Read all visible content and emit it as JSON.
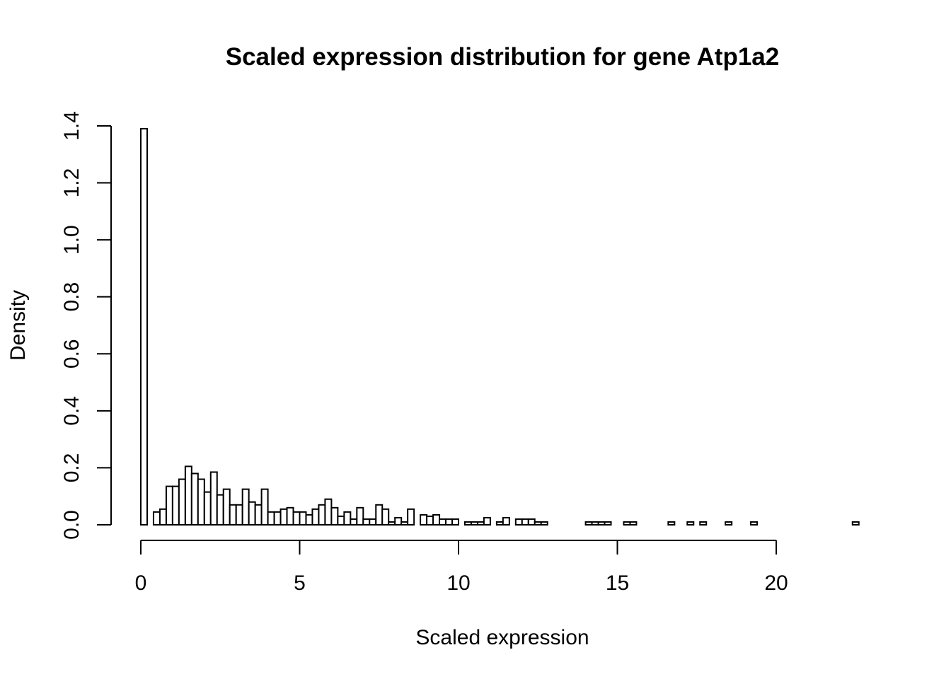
{
  "chart_data": {
    "type": "bar",
    "title": "Scaled expression distribution for gene Atp1a2",
    "xlabel": "Scaled expression",
    "ylabel": "Density",
    "xlim": [
      0,
      22.8
    ],
    "ylim": [
      0,
      1.4
    ],
    "x_axis_ticks": [
      0,
      5,
      10,
      15,
      20
    ],
    "y_axis_ticks": [
      0.0,
      0.2,
      0.4,
      0.6,
      0.8,
      1.0,
      1.2,
      1.4
    ],
    "x_tick_labels": [
      "0",
      "5",
      "10",
      "15",
      "20"
    ],
    "y_tick_labels": [
      "0.0",
      "0.2",
      "0.4",
      "0.6",
      "0.8",
      "1.0",
      "1.2",
      "1.4"
    ],
    "bin_width": 0.2,
    "bin_start": 0,
    "grid": false,
    "legend": "none",
    "values": [
      1.39,
      0,
      0.045,
      0.055,
      0.135,
      0.135,
      0.16,
      0.205,
      0.18,
      0.16,
      0.115,
      0.185,
      0.105,
      0.125,
      0.07,
      0.07,
      0.125,
      0.08,
      0.07,
      0.125,
      0.045,
      0.045,
      0.055,
      0.06,
      0.045,
      0.045,
      0.035,
      0.055,
      0.07,
      0.09,
      0.06,
      0.03,
      0.045,
      0.02,
      0.06,
      0.02,
      0.02,
      0.07,
      0.055,
      0.01,
      0.025,
      0.01,
      0.055,
      0,
      0.035,
      0.03,
      0.035,
      0.02,
      0.02,
      0.02,
      0,
      0.01,
      0.01,
      0.01,
      0.025,
      0,
      0.01,
      0.025,
      0,
      0.02,
      0.02,
      0.02,
      0.01,
      0.01,
      0,
      0,
      0,
      0,
      0,
      0,
      0.01,
      0.01,
      0.01,
      0.01,
      0,
      0,
      0.01,
      0.01,
      0,
      0,
      0,
      0,
      0,
      0.01,
      0,
      0,
      0.01,
      0,
      0.01,
      0,
      0,
      0,
      0.01,
      0,
      0,
      0,
      0.01,
      0,
      0,
      0,
      0,
      0,
      0,
      0,
      0,
      0,
      0,
      0,
      0,
      0,
      0,
      0,
      0.01
    ]
  }
}
